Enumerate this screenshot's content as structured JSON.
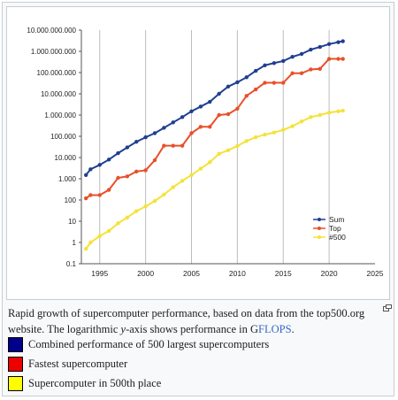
{
  "chart_data": {
    "type": "line",
    "title": "",
    "xlabel": "",
    "ylabel": "",
    "yscale": "log",
    "xlim": [
      1993,
      2025
    ],
    "ylim": [
      0.1,
      10000000000
    ],
    "x_ticks": [
      "1995",
      "2000",
      "2005",
      "2010",
      "2015",
      "2020",
      "2025"
    ],
    "y_ticks": [
      "0.1",
      "1",
      "10",
      "100",
      "1.000",
      "10.000",
      "100.000",
      "1.000.000",
      "10.000.000",
      "100.000.000",
      "1.000.000.000",
      "10.000.000.000"
    ],
    "grid": "vertical",
    "legend_position": "bottom-right",
    "series": [
      {
        "name": "Sum",
        "color": "#1f3f8f",
        "x": [
          1993.5,
          1994,
          1995,
          1996,
          1997,
          1998,
          1999,
          2000,
          2001,
          2002,
          2003,
          2004,
          2005,
          2006,
          2007,
          2008,
          2009,
          2010,
          2011,
          2012,
          2013,
          2014,
          2015,
          2016,
          2017,
          2018,
          2019,
          2020,
          2021,
          2021.5
        ],
        "values": [
          1500,
          2800,
          4500,
          8000,
          16000,
          30000,
          55000,
          90000,
          140000,
          250000,
          450000,
          800000,
          1500000,
          2500000,
          4200000,
          10000000,
          22000000,
          35000000,
          60000000,
          120000000,
          220000000,
          280000000,
          350000000,
          550000000,
          750000000,
          1200000000,
          1600000000,
          2200000000,
          2700000000,
          3000000000
        ]
      },
      {
        "name": "Top",
        "color": "#e8502a",
        "x": [
          1993.5,
          1994,
          1995,
          1996,
          1997,
          1998,
          1999,
          2000,
          2001,
          2002,
          2003,
          2004,
          2005,
          2006,
          2007,
          2008,
          2009,
          2010,
          2011,
          2012,
          2013,
          2014,
          2015,
          2016,
          2017,
          2018,
          2019,
          2020,
          2021,
          2021.5
        ],
        "values": [
          120,
          170,
          170,
          300,
          1100,
          1300,
          2200,
          2500,
          7500,
          36000,
          36000,
          36000,
          140000,
          280000,
          280000,
          1000000,
          1100000,
          2000000,
          8000000,
          16000000,
          33000000,
          33000000,
          33000000,
          93000000,
          93000000,
          140000000,
          150000000,
          440000000,
          440000000,
          440000000
        ]
      },
      {
        "name": "#500",
        "color": "#f5e23a",
        "x": [
          1993.5,
          1994,
          1995,
          1996,
          1997,
          1998,
          1999,
          2000,
          2001,
          2002,
          2003,
          2004,
          2005,
          2006,
          2007,
          2008,
          2009,
          2010,
          2011,
          2012,
          2013,
          2014,
          2015,
          2016,
          2017,
          2018,
          2019,
          2020,
          2021,
          2021.5
        ],
        "values": [
          0.5,
          1,
          2,
          3.5,
          8,
          15,
          30,
          50,
          90,
          180,
          400,
          800,
          1500,
          3000,
          6000,
          15000,
          22000,
          35000,
          60000,
          90000,
          120000,
          150000,
          200000,
          300000,
          500000,
          800000,
          1000000,
          1300000,
          1500000,
          1600000
        ]
      }
    ]
  },
  "caption": {
    "text_before_link": "Rapid growth of supercomputer performance, based on data from the top500.org website. The logarithmic ",
    "y_italic": "y",
    "text_middle": "-axis shows performance in G",
    "link_text": "FLOPS",
    "text_after": "."
  },
  "legend_items": [
    {
      "label": "Combined performance of 500 largest supercomputers",
      "color": "#00008b"
    },
    {
      "label": "Fastest supercomputer",
      "color": "#ee0000"
    },
    {
      "label": "Supercomputer in 500th place",
      "color": "#ffff00"
    }
  ]
}
